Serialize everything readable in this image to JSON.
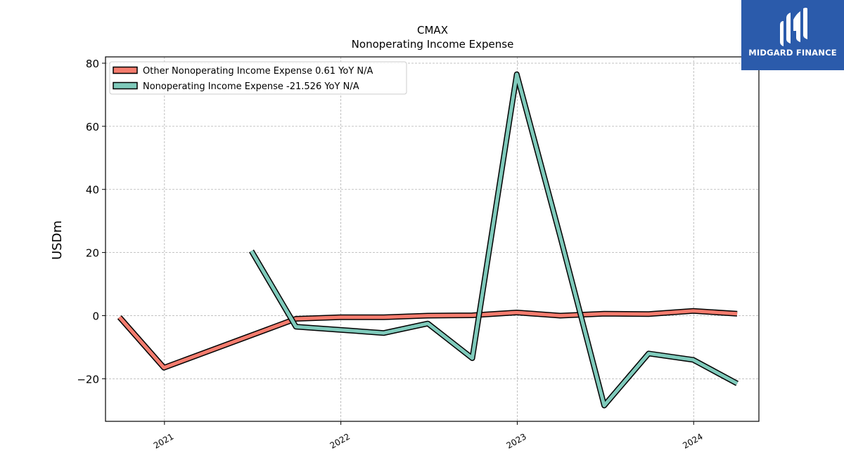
{
  "chart_data": {
    "type": "line",
    "title": "CMAX",
    "subtitle": "Nonoperating Income Expense",
    "ylabel": "USDm",
    "xlabel": "",
    "ylim": [
      -33.5,
      82
    ],
    "xlim": [
      "2020-09-01",
      "2024-05-15"
    ],
    "yticks": [
      -20,
      0,
      20,
      40,
      60,
      80
    ],
    "ytick_labels": [
      "−20",
      "0",
      "20",
      "40",
      "60",
      "80"
    ],
    "xticks": [
      "2021-01-01",
      "2022-01-01",
      "2023-01-01",
      "2024-01-01"
    ],
    "xtick_labels": [
      "2021",
      "2022",
      "2023",
      "2024"
    ],
    "grid": true,
    "legend_position": "top-left",
    "series": [
      {
        "name": "Other Nonoperating Income Expense  0.61 YoY N/A",
        "color": "#f47c6e",
        "points": [
          [
            "2020-09-30",
            -0.5
          ],
          [
            "2020-12-31",
            -16.5
          ],
          [
            "2021-09-30",
            -1.0
          ],
          [
            "2021-12-31",
            -0.5
          ],
          [
            "2022-03-31",
            -0.5
          ],
          [
            "2022-06-30",
            0.0
          ],
          [
            "2022-09-30",
            0.1
          ],
          [
            "2022-12-31",
            1.0
          ],
          [
            "2023-03-31",
            0.0
          ],
          [
            "2023-06-30",
            0.6
          ],
          [
            "2023-09-30",
            0.5
          ],
          [
            "2023-12-31",
            1.5
          ],
          [
            "2024-03-31",
            0.6
          ]
        ]
      },
      {
        "name": "Nonoperating Income Expense  -21.526 YoY N/A",
        "color": "#7fcabb",
        "points": [
          [
            "2021-06-30",
            20.5
          ],
          [
            "2021-09-30",
            -3.5
          ],
          [
            "2021-12-31",
            -4.5
          ],
          [
            "2022-03-31",
            -5.5
          ],
          [
            "2022-06-30",
            -2.5
          ],
          [
            "2022-09-30",
            -13.5
          ],
          [
            "2022-12-31",
            76.5
          ],
          [
            "2023-03-31",
            25.0
          ],
          [
            "2023-06-30",
            -28.5
          ],
          [
            "2023-09-30",
            -12.0
          ],
          [
            "2023-12-31",
            -14.0
          ],
          [
            "2024-03-31",
            -21.5
          ]
        ]
      }
    ]
  },
  "logo": {
    "text": "MIDGARD FINANCE",
    "background": "#2b5bab"
  }
}
